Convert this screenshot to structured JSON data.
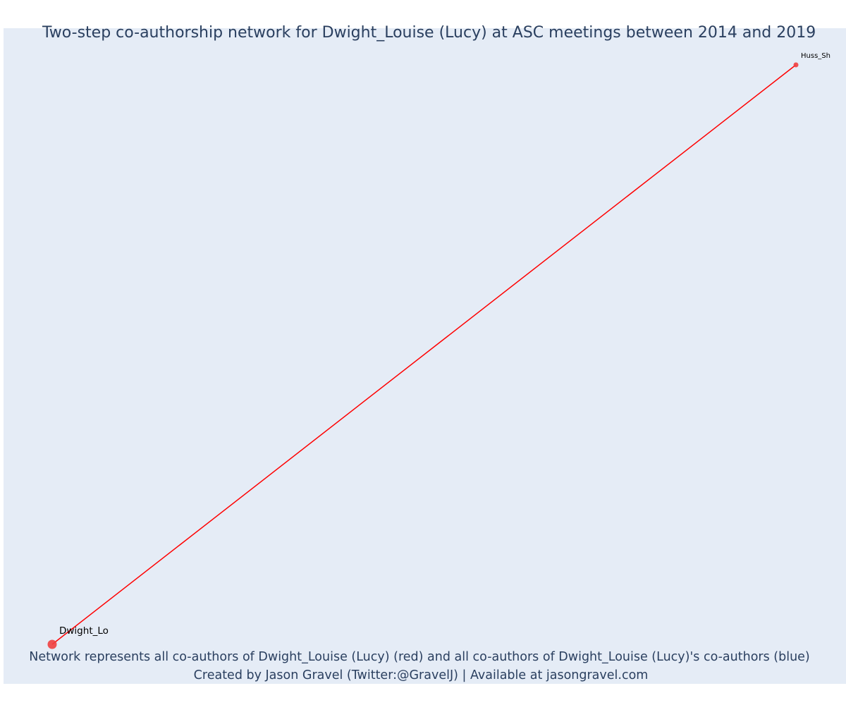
{
  "title": "Two-step co-authorship network for Dwight_Louise (Lucy) at ASC meetings between 2014 and 2019",
  "caption": {
    "line1": "Network represents all co-authors of Dwight_Louise (Lucy) (red) and all co-authors of Dwight_Louise (Lucy)'s co-authors (blue)",
    "line2": "Created by Jason Gravel (Twitter:@GravelJ) | Available at jasongravel.com"
  },
  "colors": {
    "background": "#e5ecf6",
    "edge": "#ff0000",
    "node_first_degree": "#ef4040",
    "text": "#2a3f5f"
  },
  "nodes": [
    {
      "id": "dwight",
      "label": "Dwight_Lo",
      "color": "#ef4040",
      "role": "focal"
    },
    {
      "id": "huss",
      "label": "Huss_Sh",
      "color": "#ef4040",
      "role": "co-author"
    }
  ],
  "edges": [
    {
      "source": "dwight",
      "target": "huss",
      "color": "#ff0000"
    }
  ]
}
